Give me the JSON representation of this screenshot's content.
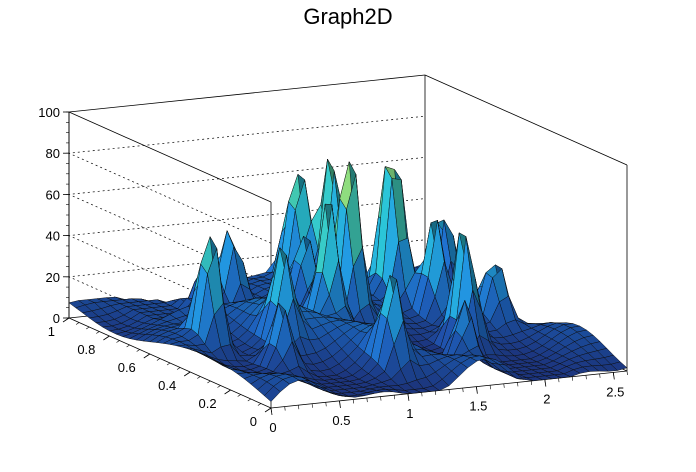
{
  "chart_data": {
    "type": "surface3d",
    "title": "Graph2D",
    "xlabel": "",
    "ylabel": "",
    "zlabel": "",
    "xlim": [
      0,
      2.6
    ],
    "ylim": [
      0,
      1
    ],
    "zlim": [
      0,
      100
    ],
    "x_ticks": [
      "0",
      "0.5",
      "1",
      "1.5",
      "2",
      "2.5"
    ],
    "x_tick_values": [
      0,
      0.5,
      1,
      1.5,
      2,
      2.5
    ],
    "y_ticks": [
      "0",
      "0.2",
      "0.4",
      "0.6",
      "0.8",
      "1"
    ],
    "y_tick_values": [
      0,
      0.2,
      0.4,
      0.6,
      0.8,
      1
    ],
    "z_ticks": [
      "0",
      "20",
      "40",
      "60",
      "80",
      "100"
    ],
    "z_tick_values": [
      0,
      20,
      40,
      60,
      80,
      100
    ],
    "grid": true,
    "legend": "none",
    "colormap": [
      "#1f3a8a",
      "#1d5fb8",
      "#1f8fd0",
      "#27b3c4",
      "#4cc79a",
      "#9ed36a",
      "#f5e52e"
    ],
    "peaks": [
      {
        "x": 1.48,
        "y": 0.62,
        "z": 86
      },
      {
        "x": 1.95,
        "y": 0.72,
        "z": 82
      },
      {
        "x": 1.66,
        "y": 0.82,
        "z": 70
      },
      {
        "x": 1.23,
        "y": 0.55,
        "z": 64
      },
      {
        "x": 1.55,
        "y": 0.92,
        "z": 62
      },
      {
        "x": 1.93,
        "y": 0.35,
        "z": 58
      },
      {
        "x": 2.42,
        "y": 0.78,
        "z": 54
      },
      {
        "x": 0.32,
        "y": 0.52,
        "z": 60
      },
      {
        "x": 2.05,
        "y": 0.58,
        "z": 46
      },
      {
        "x": 1.15,
        "y": 0.18,
        "z": 40
      },
      {
        "x": 0.98,
        "y": 0.86,
        "z": 44
      },
      {
        "x": 0.75,
        "y": 0.45,
        "z": 40
      },
      {
        "x": 1.35,
        "y": 0.75,
        "z": 36
      },
      {
        "x": 2.3,
        "y": 0.45,
        "z": 30
      },
      {
        "x": 0.55,
        "y": 0.32,
        "z": 30
      },
      {
        "x": 1.7,
        "y": 0.2,
        "z": 32
      },
      {
        "x": 0.85,
        "y": 0.9,
        "z": 26
      }
    ]
  }
}
